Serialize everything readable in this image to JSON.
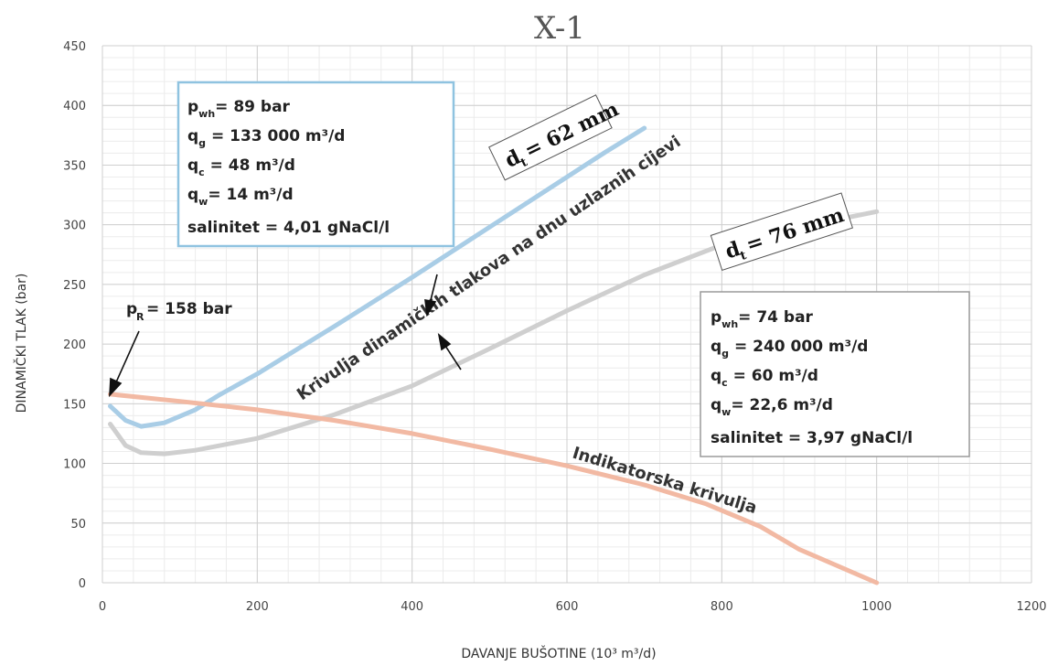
{
  "chart_data": {
    "type": "line",
    "title": "X-1",
    "xlabel": "DAVANJE BUŠOTINE (10³ m³/d)",
    "ylabel": "DINAMIČKI TLAK (bar)",
    "xlim": [
      0,
      1200
    ],
    "ylim": [
      0,
      450
    ],
    "x_ticks": [
      "0",
      "200",
      "400",
      "600",
      "800",
      "1000",
      "1200"
    ],
    "y_ticks": [
      "0",
      "50",
      "100",
      "150",
      "200",
      "250",
      "300",
      "350",
      "400",
      "450"
    ],
    "grid": true,
    "series": [
      {
        "color": "#a9cde6",
        "points": [
          [
            10,
            148
          ],
          [
            30,
            136
          ],
          [
            50,
            131
          ],
          [
            80,
            134
          ],
          [
            120,
            145
          ],
          [
            150,
            157
          ],
          [
            200,
            175
          ],
          [
            300,
            215
          ],
          [
            400,
            256
          ],
          [
            500,
            298
          ],
          [
            600,
            340
          ],
          [
            650,
            361
          ],
          [
            700,
            381
          ]
        ]
      },
      {
        "color": "#cfcfcf",
        "points": [
          [
            10,
            133
          ],
          [
            30,
            115
          ],
          [
            50,
            109
          ],
          [
            80,
            108
          ],
          [
            120,
            111
          ],
          [
            200,
            121
          ],
          [
            300,
            141
          ],
          [
            400,
            165
          ],
          [
            500,
            196
          ],
          [
            600,
            228
          ],
          [
            700,
            258
          ],
          [
            800,
            283
          ],
          [
            900,
            298
          ],
          [
            1000,
            311
          ]
        ]
      },
      {
        "color": "#f2b9a3",
        "points": [
          [
            10,
            158
          ],
          [
            100,
            152
          ],
          [
            200,
            145
          ],
          [
            300,
            136
          ],
          [
            400,
            125
          ],
          [
            500,
            112
          ],
          [
            600,
            98
          ],
          [
            700,
            82
          ],
          [
            780,
            66
          ],
          [
            850,
            47
          ],
          [
            900,
            28
          ],
          [
            1000,
            0
          ]
        ]
      }
    ],
    "annotations": {
      "pr": "p_R = 158 bar",
      "curve_top_label": "Krivulja dinamičkih tlakova na dnu uzlaznih cijevi",
      "indicator_label": "Indikatorska krivulja",
      "dt62": "d_t = 62 mm",
      "dt76": "d_t = 76 mm"
    }
  },
  "box62": {
    "lines": [
      {
        "main": "p",
        "sub": "wh",
        "rest": "= 89 bar"
      },
      {
        "main": "q",
        "sub": "g",
        "rest": " = 133 000 m³/d"
      },
      {
        "main": "q",
        "sub": "c",
        "rest": " = 48 m³/d"
      },
      {
        "main": "q",
        "sub": "w",
        "rest": "= 14 m³/d"
      },
      {
        "main": "",
        "sub": "",
        "rest": "salinitet = 4,01 gNaCl/l"
      }
    ],
    "border_color": "#8fc3e0"
  },
  "box76": {
    "lines": [
      {
        "main": "p",
        "sub": "wh",
        "rest": "= 74 bar"
      },
      {
        "main": "q",
        "sub": "g",
        "rest": " = 240 000 m³/d"
      },
      {
        "main": "q",
        "sub": "c",
        "rest": " = 60 m³/d"
      },
      {
        "main": "q",
        "sub": "w",
        "rest": "= 22,6 m³/d"
      },
      {
        "main": "",
        "sub": "",
        "rest": "salinitet = 3,97 gNaCl/l"
      }
    ],
    "border_color": "#9a9a9a"
  }
}
